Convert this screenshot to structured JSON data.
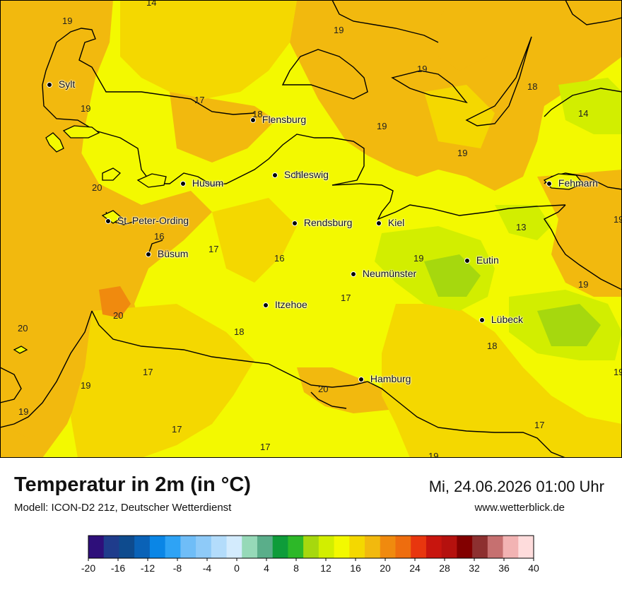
{
  "header": {
    "title": "Temperatur in 2m (in °C)",
    "model": "Modell: ICON-D2 21z, Deutscher Wetterdienst",
    "datetime": "Mi, 24.06.2026 01:00 Uhr",
    "website": "www.wetterblick.de"
  },
  "cities": [
    {
      "name": "Sylt"
    },
    {
      "name": "Flensburg"
    },
    {
      "name": "Husum"
    },
    {
      "name": "Schleswig"
    },
    {
      "name": "Fehmarn"
    },
    {
      "name": "St. Peter-Ording"
    },
    {
      "name": "Rendsburg"
    },
    {
      "name": "Kiel"
    },
    {
      "name": "Büsum"
    },
    {
      "name": "Eutin"
    },
    {
      "name": "Neumünster"
    },
    {
      "name": "Itzehoe"
    },
    {
      "name": "Lübeck"
    },
    {
      "name": "Hamburg"
    }
  ],
  "temperature_labels": [
    "14",
    "19",
    "19",
    "19",
    "19",
    "18",
    "14",
    "17",
    "18",
    "19",
    "19",
    "19",
    "20",
    "16",
    "17",
    "16",
    "13",
    "19",
    "19",
    "17",
    "19",
    "20",
    "20",
    "18",
    "18",
    "17",
    "19",
    "19",
    "20",
    "17",
    "19",
    "17",
    "17",
    "19"
  ],
  "legend": {
    "ticks": [
      "-20",
      "-16",
      "-12",
      "-8",
      "-4",
      "0",
      "4",
      "8",
      "12",
      "16",
      "20",
      "24",
      "28",
      "32",
      "36",
      "40"
    ],
    "colors": [
      "#2e0f7a",
      "#1f3c8c",
      "#0e4b8e",
      "#0a62b7",
      "#0a86e6",
      "#2ea3f5",
      "#6fbdf7",
      "#8ecaf8",
      "#b3dcfb",
      "#d3ebfd",
      "#96d9b8",
      "#5aae8a",
      "#0e9c3a",
      "#2db828",
      "#a6d80e",
      "#d2ee00",
      "#f3f900",
      "#f4d800",
      "#f2b90e",
      "#f08a0e",
      "#ee6d0e",
      "#e8360e",
      "#c8150e",
      "#b5110e",
      "#820000",
      "#8d3030",
      "#c67070",
      "#f2b3b3",
      "#fedcdc"
    ]
  }
}
